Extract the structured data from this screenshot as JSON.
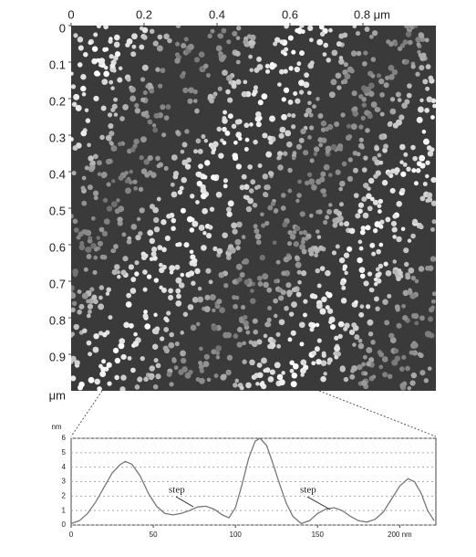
{
  "chart_data": [
    {
      "type": "image",
      "xlim": [
        0,
        1
      ],
      "ylim": [
        0,
        1
      ],
      "xticks": [
        0,
        0.2,
        0.4,
        0.6,
        {
          "value": 0.8,
          "label": "0.8 μm"
        }
      ],
      "yticks": [
        0,
        0.1,
        0.2,
        0.3,
        0.4,
        0.5,
        0.6,
        0.7,
        0.8,
        0.9
      ],
      "ylabel": "μm"
    },
    {
      "type": "line",
      "xlim": [
        0,
        222
      ],
      "ylim": [
        0,
        6
      ],
      "xticks": [
        0,
        50,
        100,
        150,
        {
          "value": 200,
          "label": "200 nm"
        }
      ],
      "yticks": [
        0,
        1,
        2,
        3,
        4,
        5,
        6
      ],
      "ylabel": "nm",
      "grid": true,
      "color": "#777",
      "x": [
        0,
        5,
        10,
        15,
        20,
        25,
        30,
        33,
        37,
        42,
        47,
        52,
        57,
        62,
        67,
        72,
        77,
        82,
        87,
        92,
        96,
        100,
        104,
        108,
        112,
        115,
        119,
        123,
        127,
        131,
        135,
        140,
        145,
        150,
        155,
        160,
        165,
        170,
        175,
        180,
        185,
        190,
        195,
        200,
        205,
        209,
        213,
        217,
        221
      ],
      "values": [
        0.1,
        0.3,
        0.8,
        1.6,
        2.6,
        3.6,
        4.2,
        4.4,
        4.2,
        3.4,
        2.2,
        1.3,
        0.8,
        0.7,
        0.8,
        1.0,
        1.25,
        1.3,
        1.1,
        0.7,
        0.5,
        1.2,
        2.8,
        4.6,
        5.8,
        6.0,
        5.5,
        4.2,
        2.8,
        1.5,
        0.6,
        0.1,
        0.3,
        0.8,
        1.1,
        1.2,
        1.0,
        0.6,
        0.3,
        0.2,
        0.4,
        0.9,
        1.8,
        2.7,
        3.2,
        3.0,
        2.2,
        1.0,
        0.3
      ],
      "annotations": [
        "step",
        "step"
      ]
    }
  ]
}
